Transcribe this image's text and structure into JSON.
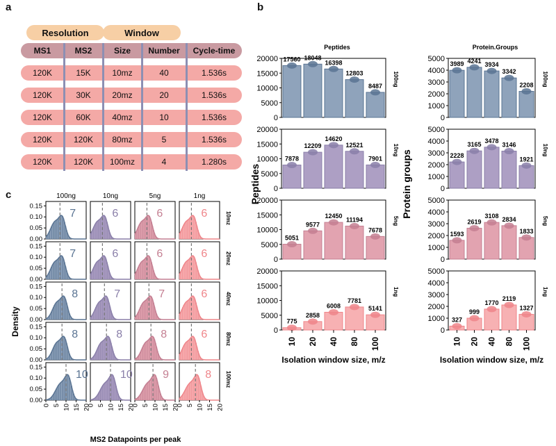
{
  "panels": {
    "a": "a",
    "b": "b",
    "c": "c"
  },
  "table": {
    "group_headers": [
      "Resolution",
      "Window"
    ],
    "columns": [
      "MS1",
      "MS2",
      "Size",
      "Number",
      "Cycle-time"
    ],
    "rows": [
      [
        "120K",
        "15K",
        "10mz",
        "40",
        "1.536s"
      ],
      [
        "120K",
        "30K",
        "20mz",
        "20",
        "1.536s"
      ],
      [
        "120K",
        "60K",
        "40mz",
        "10",
        "1.536s"
      ],
      [
        "120K",
        "120K",
        "80mz",
        "5",
        "1.536s"
      ],
      [
        "120K",
        "120K",
        "100mz",
        "4",
        "1.280s"
      ]
    ]
  },
  "colors": {
    "100ng": "#5a7493",
    "10ng": "#8a7fa9",
    "5ng": "#c47f92",
    "1ng": "#ef858a",
    "100ng_light": "#8fa3bb",
    "10ng_light": "#ad9fc4",
    "5ng_light": "#e2a3b0",
    "1ng_light": "#f7b1b3",
    "table_header": "#c99aa1",
    "table_row": "#f4a9a6",
    "group_header": "#f7cfa5"
  },
  "chart_data": [
    {
      "type": "bar",
      "title": "Peptides",
      "ylabel": "Peptides",
      "xlabel": "Isolation window size, m/z",
      "categories": [
        "10",
        "20",
        "40",
        "80",
        "100"
      ],
      "ylim": [
        0,
        20000
      ],
      "yticks": [
        "0",
        "5000",
        "10000",
        "15000",
        "20000"
      ],
      "series": [
        {
          "name": "100ng",
          "values": [
            17560,
            18048,
            16398,
            12803,
            8487
          ],
          "labels": [
            "17560",
            "18048",
            "16398",
            "12803",
            "8487"
          ]
        },
        {
          "name": "10ng",
          "values": [
            7878,
            12209,
            14620,
            12521,
            7901
          ],
          "labels": [
            "7878",
            "12209",
            "14620",
            "12521",
            "7901"
          ]
        },
        {
          "name": "5ng",
          "values": [
            5051,
            9577,
            12450,
            11194,
            7678
          ],
          "labels": [
            "5051",
            "9577",
            "12450",
            "11194",
            "7678"
          ]
        },
        {
          "name": "1ng",
          "values": [
            775,
            2858,
            6008,
            7781,
            5141
          ],
          "labels": [
            "775",
            "2858",
            "6008",
            "7781",
            "5141"
          ]
        }
      ]
    },
    {
      "type": "bar",
      "title": "Protein.Groups",
      "ylabel": "Protein groups",
      "xlabel": "Isolation window size, m/z",
      "categories": [
        "10",
        "20",
        "40",
        "80",
        "100"
      ],
      "ylim": [
        0,
        5000
      ],
      "yticks": [
        "0",
        "1000",
        "2000",
        "3000",
        "4000",
        "5000"
      ],
      "series": [
        {
          "name": "100ng",
          "values": [
            3989,
            4241,
            3934,
            3342,
            2208
          ],
          "labels": [
            "3989",
            "4241",
            "3934",
            "3342",
            "2208"
          ]
        },
        {
          "name": "10ng",
          "values": [
            2228,
            3165,
            3478,
            3146,
            1921
          ],
          "labels": [
            "2228",
            "3165",
            "3478",
            "3146",
            "1921"
          ]
        },
        {
          "name": "5ng",
          "values": [
            1593,
            2619,
            3108,
            2834,
            1833
          ],
          "labels": [
            "1593",
            "2619",
            "3108",
            "2834",
            "1833"
          ]
        },
        {
          "name": "1ng",
          "values": [
            327,
            999,
            1770,
            2119,
            1327
          ],
          "labels": [
            "327",
            "999",
            "1770",
            "2119",
            "1327"
          ]
        }
      ]
    },
    {
      "type": "histogram",
      "ylabel": "Density",
      "xlabel": "MS2 Datapoints per peak",
      "columns": [
        "100ng",
        "10ng",
        "5ng",
        "1ng"
      ],
      "rows": [
        "10mz",
        "20mz",
        "40mz",
        "80mz",
        "100mz"
      ],
      "xlim": [
        0,
        20
      ],
      "xticks": [
        "0",
        "5",
        "10",
        "15",
        "20"
      ],
      "ylim": [
        0,
        0.15
      ],
      "yticks": [
        "0.00",
        "0.05",
        "0.10",
        "0.15"
      ],
      "medians": [
        [
          "7",
          "6",
          "6",
          "6"
        ],
        [
          "7",
          "6",
          "6",
          "6"
        ],
        [
          "8",
          "7",
          "7",
          "6"
        ],
        [
          "8",
          "8",
          "8",
          "6"
        ],
        [
          "10",
          "10",
          "9",
          "8"
        ]
      ]
    }
  ]
}
